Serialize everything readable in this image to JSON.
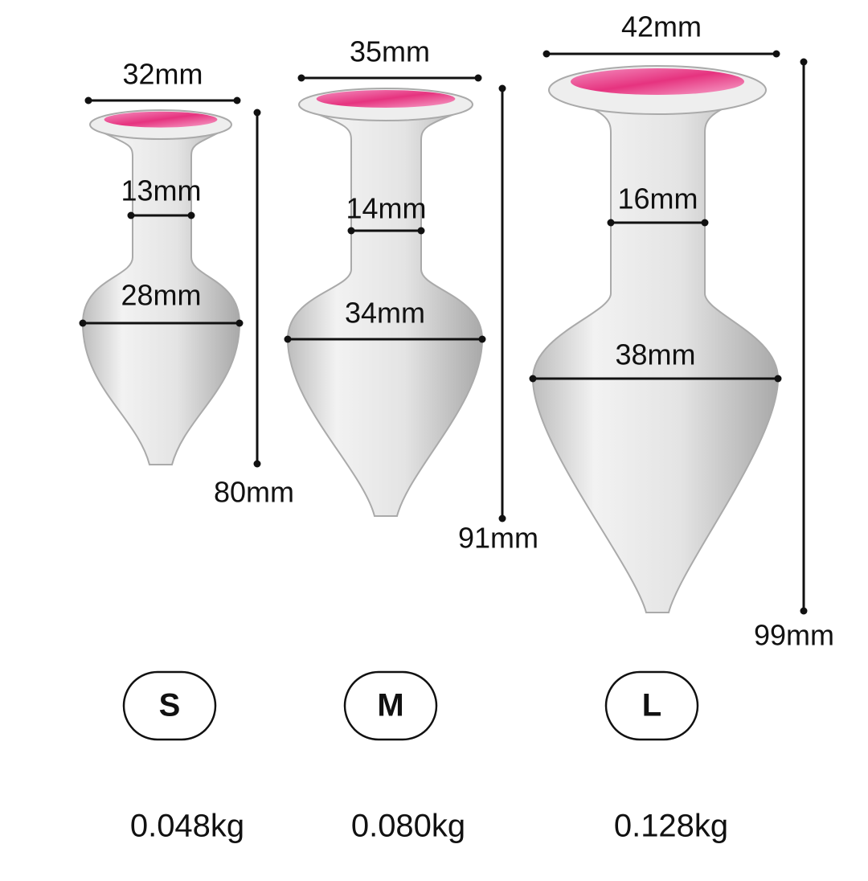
{
  "items": [
    {
      "size": "S",
      "top_width": "32mm",
      "neck_width": "13mm",
      "body_width": "28mm",
      "height": "80mm",
      "weight": "0.048kg"
    },
    {
      "size": "M",
      "top_width": "35mm",
      "neck_width": "14mm",
      "body_width": "34mm",
      "height": "91mm",
      "weight": "0.080kg"
    },
    {
      "size": "L",
      "top_width": "42mm",
      "neck_width": "16mm",
      "body_width": "38mm",
      "height": "99mm",
      "weight": "0.128kg"
    }
  ]
}
